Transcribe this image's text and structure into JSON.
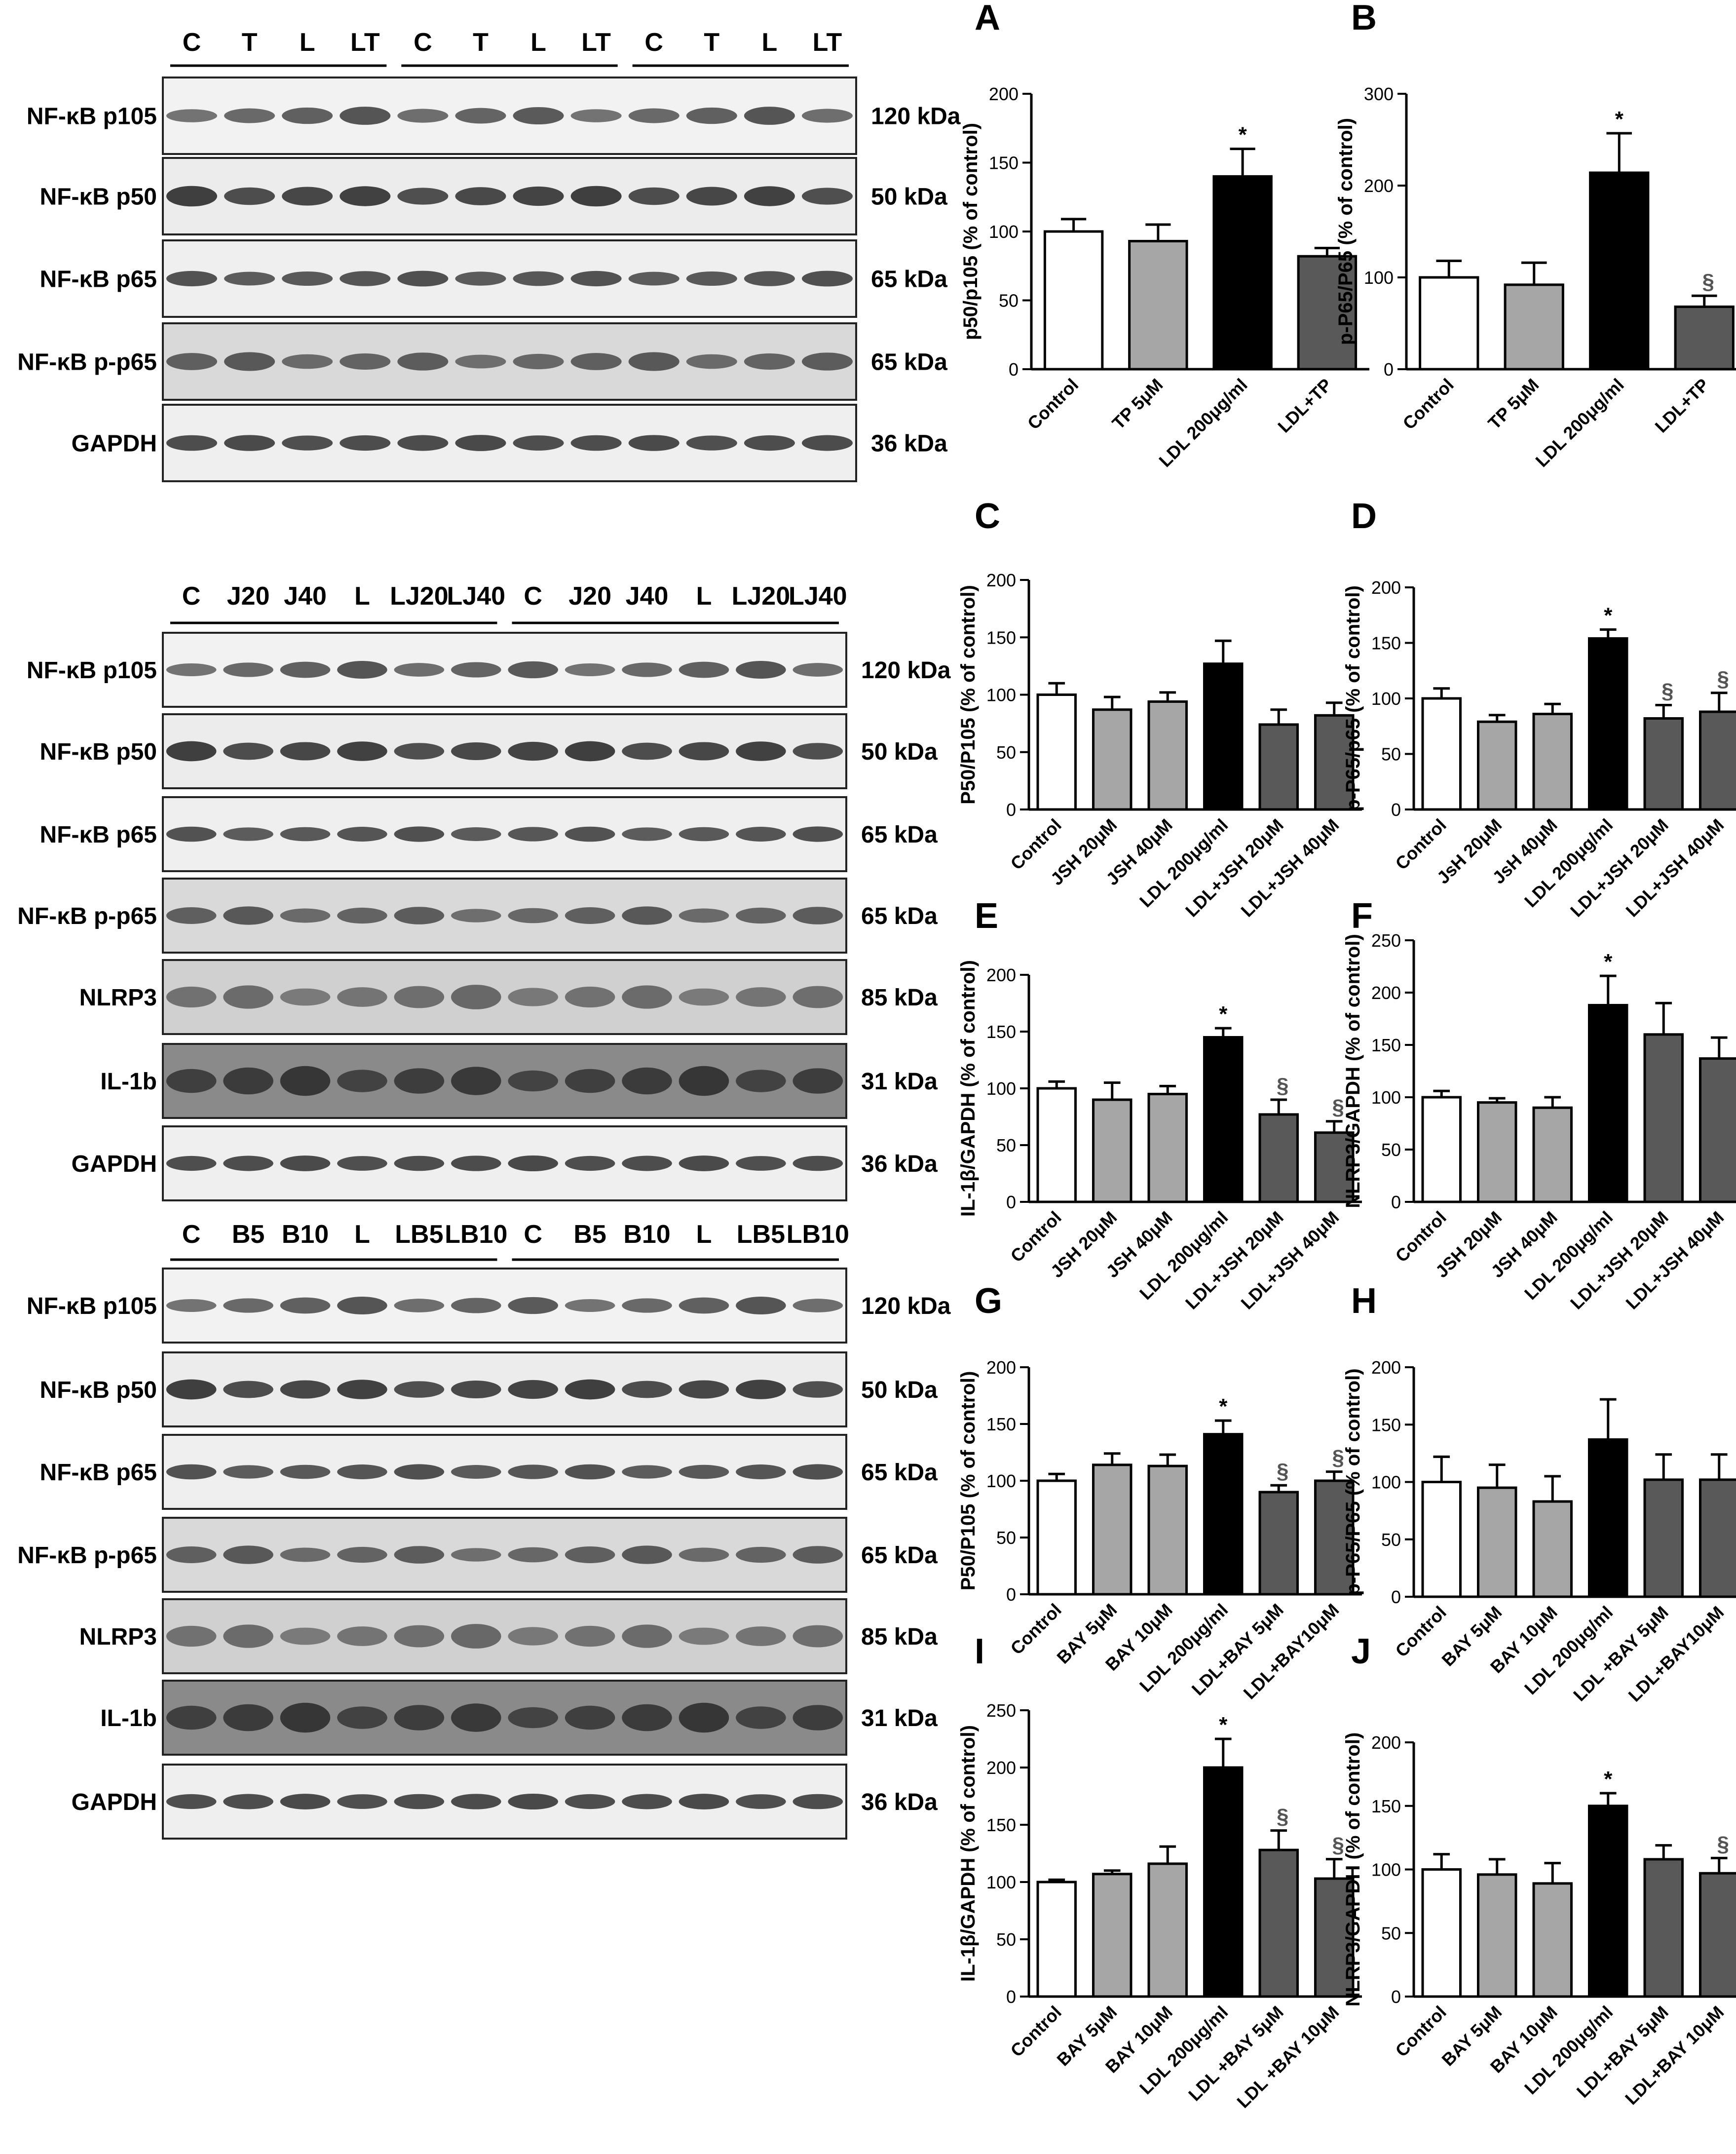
{
  "blots": [
    {
      "lanes": [
        "C",
        "T",
        "L",
        "LT",
        "C",
        "T",
        "L",
        "LT",
        "C",
        "T",
        "L",
        "LT"
      ],
      "groups": [
        [
          0,
          3
        ],
        [
          4,
          7
        ],
        [
          8,
          11
        ]
      ],
      "rows": [
        {
          "label": "NF-κB p105",
          "mw": "120 kDa"
        },
        {
          "label": "NF-κB p50",
          "mw": "50 kDa"
        },
        {
          "label": "NF-κB p65",
          "mw": "65 kDa"
        },
        {
          "label": "NF-κB p-p65",
          "mw": "65 kDa"
        },
        {
          "label": "GAPDH",
          "mw": "36 kDa"
        }
      ]
    },
    {
      "lanes": [
        "C",
        "J20",
        "J40",
        "L",
        "LJ20",
        "LJ40",
        "C",
        "J20",
        "J40",
        "L",
        "LJ20",
        "LJ40"
      ],
      "groups": [
        [
          0,
          5
        ],
        [
          6,
          11
        ]
      ],
      "rows": [
        {
          "label": "NF-κB p105",
          "mw": "120 kDa"
        },
        {
          "label": "NF-κB p50",
          "mw": "50 kDa"
        },
        {
          "label": "NF-κB p65",
          "mw": "65 kDa"
        },
        {
          "label": "NF-κB p-p65",
          "mw": "65 kDa"
        },
        {
          "label": "NLRP3",
          "mw": "85 kDa"
        },
        {
          "label": "IL-1b",
          "mw": "31 kDa"
        },
        {
          "label": "GAPDH",
          "mw": "36 kDa"
        }
      ]
    },
    {
      "lanes": [
        "C",
        "B5",
        "B10",
        "L",
        "LB5",
        "LB10",
        "C",
        "B5",
        "B10",
        "L",
        "LB5",
        "LB10"
      ],
      "groups": [
        [
          0,
          5
        ],
        [
          6,
          11
        ]
      ],
      "rows": [
        {
          "label": "NF-κB p105",
          "mw": "120 kDa"
        },
        {
          "label": "NF-κB p50",
          "mw": "50 kDa"
        },
        {
          "label": "NF-κB p65",
          "mw": "65 kDa"
        },
        {
          "label": "NF-κB p-p65",
          "mw": "65 kDa"
        },
        {
          "label": "NLRP3",
          "mw": "85 kDa"
        },
        {
          "label": "IL-1b",
          "mw": "31 kDa"
        },
        {
          "label": "GAPDH",
          "mw": "36 kDa"
        }
      ]
    }
  ],
  "chart_data": [
    {
      "type": "bar",
      "panel": "A",
      "ylabel": "p50/p105 (% of control)",
      "ylim": [
        0,
        200
      ],
      "yticks": [
        0,
        50,
        100,
        150,
        200
      ],
      "categories": [
        "Control",
        "TP 5μM",
        "LDL 200μg/ml",
        "LDL+TP"
      ],
      "values": [
        100,
        93,
        140,
        82
      ],
      "errors": [
        9,
        12,
        20,
        6
      ],
      "marks": [
        "",
        "",
        "*",
        ""
      ],
      "colors": [
        "#ffffff",
        "#a6a6a6",
        "#000000",
        "#595959"
      ]
    },
    {
      "type": "bar",
      "panel": "B",
      "ylabel": "p-P65/P65 (% of control)",
      "ylim": [
        0,
        300
      ],
      "yticks": [
        0,
        100,
        200,
        300
      ],
      "categories": [
        "Control",
        "TP 5μM",
        "LDL 200μg/ml",
        "LDL+TP"
      ],
      "values": [
        100,
        92,
        214,
        68
      ],
      "errors": [
        18,
        24,
        43,
        12
      ],
      "marks": [
        "",
        "",
        "*",
        "§"
      ],
      "colors": [
        "#ffffff",
        "#a6a6a6",
        "#000000",
        "#595959"
      ]
    },
    {
      "type": "bar",
      "panel": "C",
      "ylabel": "P50/P105 (% of control)",
      "ylim": [
        0,
        200
      ],
      "yticks": [
        0,
        50,
        100,
        150,
        200
      ],
      "categories": [
        "Control",
        "JSH 20μM",
        "JSH 40μM",
        "LDL 200μg/ml",
        "LDL+JSH 20μM",
        "LDL+JSH 40μM"
      ],
      "values": [
        100,
        87,
        94,
        127,
        74,
        82
      ],
      "errors": [
        10,
        11,
        8,
        20,
        13,
        11
      ],
      "marks": [
        "",
        "",
        "",
        "",
        "",
        ""
      ],
      "colors": [
        "#ffffff",
        "#a6a6a6",
        "#a6a6a6",
        "#000000",
        "#595959",
        "#595959"
      ]
    },
    {
      "type": "bar",
      "panel": "D",
      "ylabel": "p-P65/p65 (% of control)",
      "ylim": [
        0,
        200
      ],
      "yticks": [
        0,
        50,
        100,
        150,
        200
      ],
      "categories": [
        "Control",
        "JsH 20μM",
        "JsH 40μM",
        "LDL 200μg/ml",
        "LDL+JSH 20μM",
        "LDL+JSH 40μM"
      ],
      "values": [
        100,
        79,
        86,
        154,
        82,
        88
      ],
      "errors": [
        9,
        6,
        9,
        8,
        12,
        17
      ],
      "marks": [
        "",
        "",
        "",
        "*",
        "§",
        "§"
      ],
      "colors": [
        "#ffffff",
        "#a6a6a6",
        "#a6a6a6",
        "#000000",
        "#595959",
        "#595959"
      ]
    },
    {
      "type": "bar",
      "panel": "E",
      "ylabel": "IL-1β/GAPDH (% of control)",
      "ylim": [
        0,
        200
      ],
      "yticks": [
        0,
        50,
        100,
        150,
        200
      ],
      "categories": [
        "Control",
        "JSH 20μM",
        "JSH 40μM",
        "LDL 200μg/ml",
        "LDL+JSH 20μM",
        "LDL+JSH 40μM"
      ],
      "values": [
        100,
        90,
        95,
        145,
        77,
        61
      ],
      "errors": [
        6,
        15,
        7,
        8,
        13,
        10
      ],
      "marks": [
        "",
        "",
        "",
        "*",
        "§",
        "§"
      ],
      "colors": [
        "#ffffff",
        "#a6a6a6",
        "#a6a6a6",
        "#000000",
        "#595959",
        "#595959"
      ]
    },
    {
      "type": "bar",
      "panel": "F",
      "ylabel": "NLRP3/GAPDH (% of control)",
      "ylim": [
        0,
        250
      ],
      "yticks": [
        0,
        50,
        100,
        150,
        200,
        250
      ],
      "categories": [
        "Control",
        "JSH 20μM",
        "JSH 40μM",
        "LDL 200μg/ml",
        "LDL+JSH 20μM",
        "LDL+JSH 40μM"
      ],
      "values": [
        100,
        95,
        90,
        188,
        160,
        137
      ],
      "errors": [
        6,
        4,
        10,
        28,
        30,
        20
      ],
      "marks": [
        "",
        "",
        "",
        "*",
        "",
        ""
      ],
      "colors": [
        "#ffffff",
        "#a6a6a6",
        "#a6a6a6",
        "#000000",
        "#595959",
        "#595959"
      ]
    },
    {
      "type": "bar",
      "panel": "G",
      "ylabel": "P50/P105 (% of control)",
      "ylim": [
        0,
        200
      ],
      "yticks": [
        0,
        50,
        100,
        150,
        200
      ],
      "categories": [
        "Control",
        "BAY 5μM",
        "BAY 10μM",
        "LDL 200μg/ml",
        "LDL+BAY 5μM",
        "LDL+BAY10μM"
      ],
      "values": [
        100,
        114,
        113,
        141,
        90,
        100
      ],
      "errors": [
        6,
        10,
        10,
        12,
        6,
        8
      ],
      "marks": [
        "",
        "",
        "",
        "*",
        "§",
        "§"
      ],
      "colors": [
        "#ffffff",
        "#a6a6a6",
        "#a6a6a6",
        "#000000",
        "#595959",
        "#595959"
      ]
    },
    {
      "type": "bar",
      "panel": "H",
      "ylabel": "p-P65/P65 (% of control)",
      "ylim": [
        0,
        200
      ],
      "yticks": [
        0,
        50,
        100,
        150,
        200
      ],
      "categories": [
        "Control",
        "BAY 5μM",
        "BAY 10μM",
        "LDL 200μg/ml",
        "LDL +BAY 5μM",
        "LDL+BAY10μM"
      ],
      "values": [
        100,
        95,
        83,
        137,
        102,
        102
      ],
      "errors": [
        22,
        20,
        22,
        35,
        22,
        22
      ],
      "marks": [
        "",
        "",
        "",
        "",
        "",
        ""
      ],
      "colors": [
        "#ffffff",
        "#a6a6a6",
        "#a6a6a6",
        "#000000",
        "#595959",
        "#595959"
      ]
    },
    {
      "type": "bar",
      "panel": "I",
      "ylabel": "IL-1β/GAPDH (% of control)",
      "ylim": [
        0,
        250
      ],
      "yticks": [
        0,
        50,
        100,
        150,
        200,
        250
      ],
      "categories": [
        "Control",
        "BAY 5μM",
        "BAY 10μM",
        "LDL 200μg/ml",
        "LDL +BAY 5μM",
        "LDL +BAY 10μM"
      ],
      "values": [
        100,
        107,
        116,
        200,
        128,
        103
      ],
      "errors": [
        2,
        3,
        15,
        25,
        17,
        17
      ],
      "marks": [
        "",
        "",
        "",
        "*",
        "§",
        "§"
      ],
      "colors": [
        "#ffffff",
        "#a6a6a6",
        "#a6a6a6",
        "#000000",
        "#595959",
        "#595959"
      ]
    },
    {
      "type": "bar",
      "panel": "J",
      "ylabel": "NLRP3/GAPDH (% of control)",
      "ylim": [
        0,
        200
      ],
      "yticks": [
        0,
        50,
        100,
        150,
        200
      ],
      "categories": [
        "Control",
        "BAY 5μM",
        "BAY 10μM",
        "LDL 200μg/ml",
        "LDL+BAY 5μM",
        "LDL+BAY 10μM"
      ],
      "values": [
        100,
        96,
        89,
        150,
        108,
        97
      ],
      "errors": [
        12,
        12,
        16,
        10,
        11,
        12
      ],
      "marks": [
        "",
        "",
        "",
        "*",
        "",
        "§"
      ],
      "colors": [
        "#ffffff",
        "#a6a6a6",
        "#a6a6a6",
        "#000000",
        "#595959",
        "#595959"
      ]
    }
  ]
}
